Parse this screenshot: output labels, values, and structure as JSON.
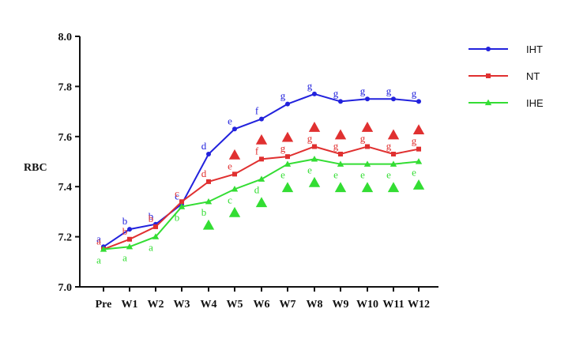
{
  "chart_data": {
    "type": "line",
    "ylabel": "RBC",
    "xlabel": "",
    "title": "",
    "categories": [
      "Pre",
      "W1",
      "W2",
      "W3",
      "W4",
      "W5",
      "W6",
      "W7",
      "W8",
      "W9",
      "W10",
      "W11",
      "W12"
    ],
    "ylim": [
      7.0,
      8.0
    ],
    "yticks": [
      "7.0",
      "7.2",
      "7.4",
      "7.6",
      "7.8",
      "8.0"
    ],
    "grid": false,
    "legend_position": "right",
    "series": [
      {
        "name": "IHT",
        "color": "#2222dd",
        "marker": "circle",
        "values": [
          7.16,
          7.23,
          7.25,
          7.33,
          7.53,
          7.63,
          7.67,
          7.73,
          7.77,
          7.74,
          7.75,
          7.75,
          7.74
        ],
        "letters": [
          "a",
          "b",
          "b",
          "c",
          "d",
          "e",
          "f",
          "g",
          "g",
          "g",
          "g",
          "g",
          "g"
        ]
      },
      {
        "name": "NT",
        "color": "#e03030",
        "marker": "square",
        "values": [
          7.15,
          7.19,
          7.24,
          7.34,
          7.42,
          7.45,
          7.51,
          7.52,
          7.56,
          7.53,
          7.56,
          7.53,
          7.55
        ],
        "letters": [
          "a",
          "b",
          "b",
          "c",
          "d",
          "e",
          "f",
          "g",
          "g",
          "g",
          "g",
          "g",
          "g"
        ],
        "markers": [
          "",
          "",
          "",
          "",
          "",
          "triangle",
          "triangle",
          "triangle",
          "triangle",
          "triangle",
          "triangle",
          "triangle",
          "triangle"
        ]
      },
      {
        "name": "IHE",
        "color": "#33dd33",
        "marker": "triangle",
        "values": [
          7.15,
          7.16,
          7.2,
          7.32,
          7.34,
          7.39,
          7.43,
          7.49,
          7.51,
          7.49,
          7.49,
          7.49,
          7.5
        ],
        "letters": [
          "a",
          "a",
          "a",
          "b",
          "b",
          "c",
          "d",
          "e",
          "e",
          "e",
          "e",
          "e",
          "e"
        ],
        "markers": [
          "",
          "",
          "",
          "",
          "triangle",
          "triangle",
          "triangle",
          "triangle",
          "triangle",
          "triangle",
          "triangle",
          "triangle",
          "triangle"
        ]
      }
    ]
  }
}
